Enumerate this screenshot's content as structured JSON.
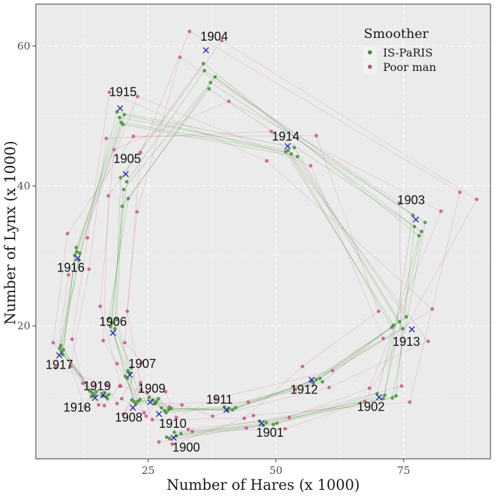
{
  "chart_data": {
    "type": "scatter",
    "xlabel": "Number of Hares (x 1000)",
    "ylabel": "Number of Lynx (x 1000)",
    "xlim": [
      3,
      92
    ],
    "ylim": [
      1,
      66
    ],
    "xticks": [
      25,
      50,
      75
    ],
    "yticks": [
      20,
      40,
      60
    ],
    "grid": true,
    "legend": {
      "title": "Smoother",
      "placement": "top-right",
      "entries": [
        "IS-PaRIS",
        "Poor man"
      ]
    },
    "colors": {
      "panel": "#ebebeb",
      "grid": "#ffffff",
      "is_paris": "#3d8c2e",
      "poor_man": "#c2507e",
      "truth_marker": "#2222bb"
    },
    "truth": [
      {
        "year": "1900",
        "x": 30,
        "y": 4
      },
      {
        "year": "1901",
        "x": 47.2,
        "y": 6.1
      },
      {
        "year": "1902",
        "x": 70.2,
        "y": 9.8
      },
      {
        "year": "1903",
        "x": 77.4,
        "y": 35.2
      },
      {
        "year": "1904",
        "x": 36.3,
        "y": 59.4
      },
      {
        "year": "1905",
        "x": 20.6,
        "y": 41.7
      },
      {
        "year": "1906",
        "x": 18.1,
        "y": 19
      },
      {
        "year": "1907",
        "x": 21.4,
        "y": 13
      },
      {
        "year": "1908",
        "x": 22,
        "y": 8.3
      },
      {
        "year": "1909",
        "x": 25.4,
        "y": 9.1
      },
      {
        "year": "1910",
        "x": 27.1,
        "y": 7.4
      },
      {
        "year": "1911",
        "x": 40.3,
        "y": 8
      },
      {
        "year": "1912",
        "x": 57,
        "y": 12.3
      },
      {
        "year": "1913",
        "x": 76.6,
        "y": 19.5
      },
      {
        "year": "1914",
        "x": 52.3,
        "y": 45.7
      },
      {
        "year": "1915",
        "x": 19.5,
        "y": 51.1
      },
      {
        "year": "1916",
        "x": 11.2,
        "y": 29.7
      },
      {
        "year": "1917",
        "x": 7.6,
        "y": 15.8
      },
      {
        "year": "1918",
        "x": 14.6,
        "y": 9.7
      },
      {
        "year": "1919",
        "x": 16.2,
        "y": 10.1
      }
    ],
    "series": [
      {
        "name": "IS-PaRIS",
        "points": [
          [
            30.5,
            4.3
          ],
          [
            29.2,
            3.9
          ],
          [
            31.4,
            4.6
          ],
          [
            28.6,
            4.1
          ],
          [
            30.1,
            4.8
          ],
          [
            48.1,
            6.2
          ],
          [
            49.5,
            5.9
          ],
          [
            46.8,
            6.4
          ],
          [
            50.2,
            6.1
          ],
          [
            47.5,
            5.8
          ],
          [
            71.3,
            10.1
          ],
          [
            72.8,
            9.7
          ],
          [
            69.8,
            10.3
          ],
          [
            73.5,
            10.0
          ],
          [
            71.0,
            9.6
          ],
          [
            77.1,
            34.2
          ],
          [
            78.5,
            33.5
          ],
          [
            76.8,
            35.8
          ],
          [
            79.2,
            34.8
          ],
          [
            78.0,
            32.9
          ],
          [
            36.0,
            56.5
          ],
          [
            37.2,
            54.8
          ],
          [
            35.8,
            57.5
          ],
          [
            38.1,
            55.6
          ],
          [
            36.9,
            53.9
          ],
          [
            20.2,
            39.5
          ],
          [
            19.6,
            41.2
          ],
          [
            21.1,
            38.2
          ],
          [
            19.9,
            37.1
          ],
          [
            20.8,
            40.6
          ],
          [
            17.9,
            20.4
          ],
          [
            18.5,
            19.6
          ],
          [
            17.3,
            21.0
          ],
          [
            18.8,
            20.9
          ],
          [
            17.6,
            19.9
          ],
          [
            21.0,
            13.6
          ],
          [
            20.5,
            12.8
          ],
          [
            21.7,
            14.0
          ],
          [
            20.9,
            12.5
          ],
          [
            21.4,
            13.3
          ],
          [
            22.3,
            9.1
          ],
          [
            21.8,
            9.4
          ],
          [
            23.0,
            9.2
          ],
          [
            22.6,
            8.8
          ],
          [
            23.4,
            9.5
          ],
          [
            25.9,
            9.4
          ],
          [
            26.6,
            9.2
          ],
          [
            25.2,
            9.8
          ],
          [
            27.0,
            9.6
          ],
          [
            26.3,
            8.9
          ],
          [
            28.2,
            7.9
          ],
          [
            27.6,
            8.3
          ],
          [
            29.0,
            8.0
          ],
          [
            28.5,
            7.6
          ],
          [
            29.5,
            8.2
          ],
          [
            40.8,
            8.2
          ],
          [
            41.5,
            8.0
          ],
          [
            39.9,
            8.4
          ],
          [
            42.1,
            8.3
          ],
          [
            40.5,
            7.9
          ],
          [
            57.9,
            12.3
          ],
          [
            56.8,
            12.1
          ],
          [
            58.6,
            12.5
          ],
          [
            57.3,
            11.8
          ],
          [
            59.1,
            12.0
          ],
          [
            74.2,
            20.6
          ],
          [
            73.0,
            20.1
          ],
          [
            75.5,
            21.3
          ],
          [
            72.7,
            19.8
          ],
          [
            74.8,
            19.6
          ],
          [
            53.0,
            44.6
          ],
          [
            52.4,
            45.1
          ],
          [
            54.2,
            44.2
          ],
          [
            53.6,
            45.5
          ],
          [
            51.9,
            44.9
          ],
          [
            19.4,
            49.8
          ],
          [
            20.1,
            48.8
          ],
          [
            18.9,
            50.6
          ],
          [
            19.7,
            49.1
          ],
          [
            20.3,
            50.2
          ],
          [
            11.0,
            30.6
          ],
          [
            10.6,
            30.1
          ],
          [
            11.4,
            29.4
          ],
          [
            10.9,
            31.2
          ],
          [
            11.6,
            30.4
          ],
          [
            8.0,
            16.3
          ],
          [
            7.7,
            16.8
          ],
          [
            8.3,
            15.9
          ],
          [
            7.9,
            17.2
          ],
          [
            8.4,
            16.6
          ],
          [
            14.1,
            10.4
          ],
          [
            13.6,
            10.7
          ],
          [
            14.5,
            10.1
          ],
          [
            13.9,
            9.9
          ],
          [
            14.8,
            10.6
          ],
          [
            16.8,
            9.9
          ],
          [
            17.3,
            10.2
          ],
          [
            16.4,
            10.5
          ],
          [
            17.0,
            9.6
          ],
          [
            16.1,
            10.0
          ]
        ]
      },
      {
        "name": "Poor man",
        "points": [
          [
            27.1,
            3.4
          ],
          [
            32.8,
            5.2
          ],
          [
            29.7,
            3.1
          ],
          [
            33.6,
            4.9
          ],
          [
            44.2,
            5.4
          ],
          [
            52.6,
            6.9
          ],
          [
            45.6,
            7.2
          ],
          [
            51.8,
            5.3
          ],
          [
            67.4,
            9.2
          ],
          [
            74.6,
            11.4
          ],
          [
            68.3,
            11.1
          ],
          [
            76.2,
            9.1
          ],
          [
            82.3,
            36.4
          ],
          [
            86.0,
            39.1
          ],
          [
            89.3,
            38.1
          ],
          [
            74.2,
            37.6
          ],
          [
            33.1,
            62.1
          ],
          [
            39.4,
            60.8
          ],
          [
            31.2,
            58.4
          ],
          [
            40.8,
            52.1
          ],
          [
            23.5,
            44.8
          ],
          [
            17.2,
            38.6
          ],
          [
            22.8,
            36.3
          ],
          [
            18.3,
            45.2
          ],
          [
            15.6,
            22.8
          ],
          [
            20.4,
            17.6
          ],
          [
            16.2,
            17.9
          ],
          [
            20.9,
            22.1
          ],
          [
            18.9,
            14.6
          ],
          [
            23.5,
            11.9
          ],
          [
            19.6,
            11.4
          ],
          [
            23.8,
            14.8
          ],
          [
            20.1,
            7.4
          ],
          [
            24.8,
            10.4
          ],
          [
            19.8,
            9.6
          ],
          [
            24.6,
            7.1
          ],
          [
            23.6,
            10.9
          ],
          [
            29.1,
            8.4
          ],
          [
            24.2,
            7.6
          ],
          [
            28.4,
            10.6
          ],
          [
            30.5,
            6.9
          ],
          [
            25.8,
            6.6
          ],
          [
            31.6,
            8.7
          ],
          [
            26.3,
            8.9
          ],
          [
            37.6,
            7.1
          ],
          [
            44.6,
            9.1
          ],
          [
            38.2,
            9.6
          ],
          [
            43.8,
            6.8
          ],
          [
            53.8,
            10.9
          ],
          [
            61.1,
            13.6
          ],
          [
            55.2,
            14.2
          ],
          [
            60.4,
            11.2
          ],
          [
            71.0,
            18.2
          ],
          [
            80.6,
            22.4
          ],
          [
            70.1,
            22.1
          ],
          [
            79.8,
            17.8
          ],
          [
            49.1,
            47.8
          ],
          [
            56.8,
            42.9
          ],
          [
            48.2,
            43.6
          ],
          [
            57.9,
            47.2
          ],
          [
            17.4,
            53.4
          ],
          [
            22.1,
            47.1
          ],
          [
            16.8,
            46.8
          ],
          [
            22.9,
            52.8
          ],
          [
            9.2,
            33.2
          ],
          [
            13.4,
            28.1
          ],
          [
            9.4,
            27.3
          ],
          [
            13.1,
            32.6
          ],
          [
            6.4,
            17.6
          ],
          [
            9.8,
            14.2
          ],
          [
            6.9,
            14.0
          ],
          [
            10.1,
            18.1
          ],
          [
            12.2,
            11.8
          ],
          [
            16.4,
            8.6
          ],
          [
            12.6,
            8.4
          ],
          [
            16.9,
            11.6
          ],
          [
            14.6,
            11.6
          ],
          [
            18.9,
            8.9
          ],
          [
            15.3,
            8.7
          ],
          [
            19.4,
            11.4
          ]
        ]
      }
    ]
  }
}
